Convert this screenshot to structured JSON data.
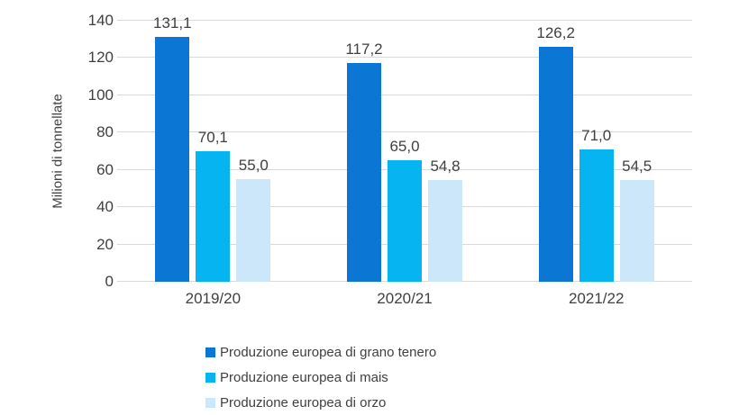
{
  "chart_data": {
    "type": "bar",
    "title": "",
    "xlabel": "",
    "ylabel": "Milioni di tonnellate",
    "categories": [
      "2019/20",
      "2020/21",
      "2021/22"
    ],
    "series": [
      {
        "name": "Produzione europea di grano tenero",
        "color": "#0b76d4",
        "values": [
          131.1,
          117.2,
          126.2
        ],
        "labels": [
          "131,1",
          "117,2",
          "126,2"
        ]
      },
      {
        "name": "Produzione europea di mais",
        "color": "#05b4f0",
        "values": [
          70.1,
          65.0,
          71.0
        ],
        "labels": [
          "70,1",
          "65,0",
          "71,0"
        ]
      },
      {
        "name": "Produzione europea di orzo",
        "color": "#cce7f9",
        "values": [
          55.0,
          54.8,
          54.5
        ],
        "labels": [
          "55,0",
          "54,8",
          "54,5"
        ]
      }
    ],
    "ylim": [
      0,
      140
    ],
    "yticks": [
      0,
      20,
      40,
      60,
      80,
      100,
      120,
      140
    ],
    "grid": true,
    "gridline_color": "#d9d9d9",
    "text_color": "#404040",
    "legend_position": "bottom-left"
  }
}
